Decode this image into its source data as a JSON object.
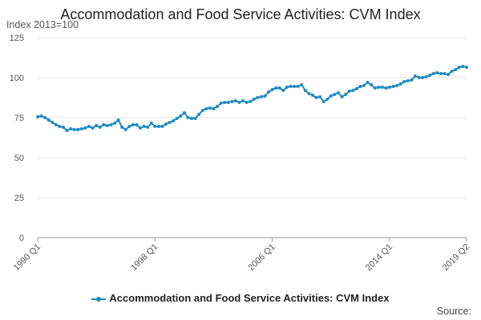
{
  "chart_data": {
    "type": "line",
    "title": "Accommodation and Food Service Activities: CVM Index",
    "units_label": "Index 2013=100",
    "ylim": [
      0,
      125
    ],
    "y_ticks": [
      "0",
      "25",
      "50",
      "75",
      "100",
      "125"
    ],
    "x_ticks": [
      "1990 Q1",
      "1998 Q1",
      "2006 Q1",
      "2014 Q1",
      "2019 Q2"
    ],
    "grid": true,
    "legend_position": "bottom",
    "series": [
      {
        "name": "Accommodation and Food Service Activities: CVM Index",
        "color": "#1f8ac3",
        "x": [
          "1990 Q1",
          "1990 Q2",
          "1990 Q3",
          "1990 Q4",
          "1991 Q1",
          "1991 Q2",
          "1991 Q3",
          "1991 Q4",
          "1992 Q1",
          "1992 Q2",
          "1992 Q3",
          "1992 Q4",
          "1993 Q1",
          "1993 Q2",
          "1993 Q3",
          "1993 Q4",
          "1994 Q1",
          "1994 Q2",
          "1994 Q3",
          "1994 Q4",
          "1995 Q1",
          "1995 Q2",
          "1995 Q3",
          "1995 Q4",
          "1996 Q1",
          "1996 Q2",
          "1996 Q3",
          "1996 Q4",
          "1997 Q1",
          "1997 Q2",
          "1997 Q3",
          "1997 Q4",
          "1998 Q1",
          "1998 Q2",
          "1998 Q3",
          "1998 Q4",
          "1999 Q1",
          "1999 Q2",
          "1999 Q3",
          "1999 Q4",
          "2000 Q1",
          "2000 Q2",
          "2000 Q3",
          "2000 Q4",
          "2001 Q1",
          "2001 Q2",
          "2001 Q3",
          "2001 Q4",
          "2002 Q1",
          "2002 Q2",
          "2002 Q3",
          "2002 Q4",
          "2003 Q1",
          "2003 Q2",
          "2003 Q3",
          "2003 Q4",
          "2004 Q1",
          "2004 Q2",
          "2004 Q3",
          "2004 Q4",
          "2005 Q1",
          "2005 Q2",
          "2005 Q3",
          "2005 Q4",
          "2006 Q1",
          "2006 Q2",
          "2006 Q3",
          "2006 Q4",
          "2007 Q1",
          "2007 Q2",
          "2007 Q3",
          "2007 Q4",
          "2008 Q1",
          "2008 Q2",
          "2008 Q3",
          "2008 Q4",
          "2009 Q1",
          "2009 Q2",
          "2009 Q3",
          "2009 Q4",
          "2010 Q1",
          "2010 Q2",
          "2010 Q3",
          "2010 Q4",
          "2011 Q1",
          "2011 Q2",
          "2011 Q3",
          "2011 Q4",
          "2012 Q1",
          "2012 Q2",
          "2012 Q3",
          "2012 Q4",
          "2013 Q1",
          "2013 Q2",
          "2013 Q3",
          "2013 Q4",
          "2014 Q1",
          "2014 Q2",
          "2014 Q3",
          "2014 Q4",
          "2015 Q1",
          "2015 Q2",
          "2015 Q3",
          "2015 Q4",
          "2016 Q1",
          "2016 Q2",
          "2016 Q3",
          "2016 Q4",
          "2017 Q1",
          "2017 Q2",
          "2017 Q3",
          "2017 Q4",
          "2018 Q1",
          "2018 Q2",
          "2018 Q3",
          "2018 Q4",
          "2019 Q1",
          "2019 Q2"
        ],
        "values": [
          75.5,
          76,
          75,
          73.5,
          72,
          70.5,
          69.5,
          69,
          67,
          68,
          67.5,
          67.5,
          68,
          68.5,
          69.5,
          68.5,
          70,
          69,
          70.5,
          70,
          70.5,
          71.5,
          73.5,
          69,
          67.5,
          69.5,
          70.5,
          70.5,
          68.5,
          69.5,
          69,
          71.5,
          69.5,
          69.5,
          69.5,
          71,
          72,
          73,
          74.5,
          76,
          78,
          75,
          74.5,
          74.5,
          77,
          79.5,
          80.5,
          81,
          80.5,
          82,
          84,
          84.5,
          84.5,
          85,
          85.5,
          84.5,
          85.5,
          84.5,
          85,
          86.5,
          87.5,
          88,
          88.5,
          91,
          92.5,
          93.5,
          93.5,
          92,
          94,
          94.5,
          94.5,
          94.5,
          95.5,
          92,
          90,
          89,
          87.5,
          88,
          85,
          86.5,
          88.5,
          89.5,
          90.5,
          88,
          89.5,
          91.5,
          92,
          93,
          94.5,
          95,
          97,
          95.5,
          93.5,
          94,
          94,
          93.5,
          94,
          94.5,
          95,
          96,
          97.5,
          98,
          98.5,
          101,
          100,
          100,
          100.5,
          101.5,
          102.5,
          103,
          102.5,
          102.5,
          102,
          104,
          105,
          106.5,
          107,
          106.5
        ]
      }
    ]
  },
  "footer": {
    "source_label": "Source:"
  }
}
